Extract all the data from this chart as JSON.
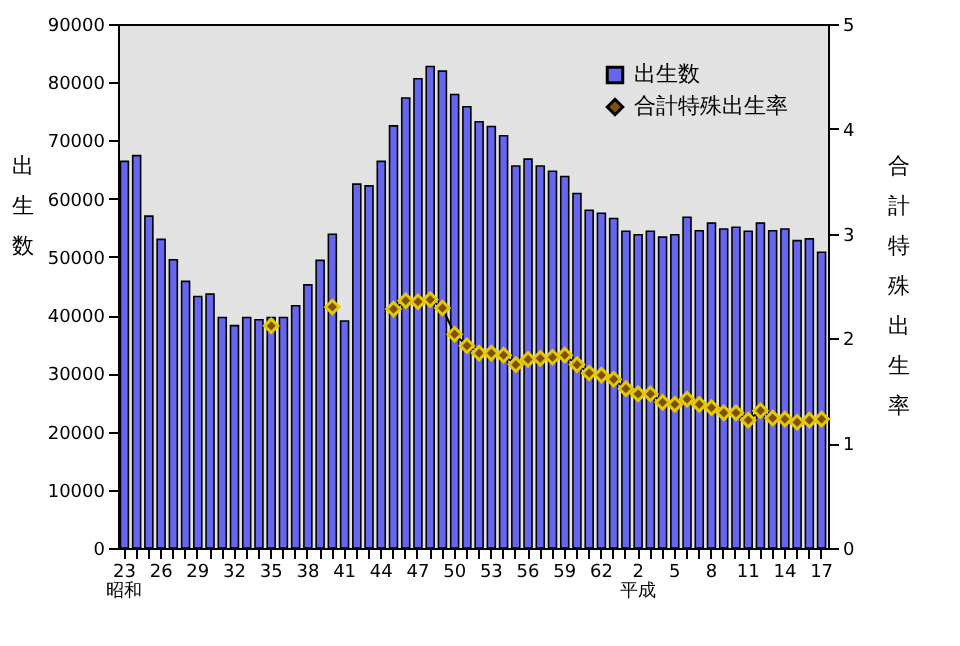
{
  "chart_data": {
    "type": "bar",
    "ylabel": "出生数",
    "y2label": "合計特殊出生率",
    "categories": [
      "23",
      null,
      null,
      "26",
      null,
      null,
      "29",
      null,
      null,
      "32",
      null,
      null,
      "35",
      null,
      null,
      "38",
      null,
      null,
      "41",
      null,
      null,
      "44",
      null,
      null,
      "47",
      null,
      null,
      "50",
      null,
      null,
      "53",
      null,
      null,
      "56",
      null,
      null,
      "59",
      null,
      null,
      "62",
      null,
      null,
      "2",
      null,
      null,
      "5",
      null,
      null,
      "8",
      null,
      null,
      "11",
      null,
      null,
      "14",
      null,
      null,
      "17"
    ],
    "series": [
      {
        "name": "出生数",
        "color": "#6666ee",
        "values": [
          66400,
          67400,
          57000,
          53000,
          49500,
          45800,
          43200,
          43600,
          39600,
          38200,
          39600,
          39200,
          39600,
          39600,
          41600,
          45200,
          49400,
          53900,
          39000,
          62500,
          62200,
          66400,
          72500,
          77300,
          80600,
          82700,
          81900,
          77900,
          75800,
          73200,
          72400,
          70800,
          65600,
          66800,
          65600,
          64700,
          63800,
          60900,
          58000,
          57500,
          56600,
          54400,
          53800,
          54400,
          53400,
          53800,
          56800,
          54500,
          55800,
          54800,
          55100,
          54400,
          55800,
          54500,
          54800,
          52800,
          53100,
          50800
        ]
      },
      {
        "name": "合計特殊出生率",
        "type": "line",
        "axis": "y2",
        "color": "#7a5200",
        "values": [
          null,
          null,
          null,
          null,
          null,
          null,
          null,
          null,
          null,
          null,
          null,
          null,
          2.12,
          null,
          null,
          null,
          null,
          2.3,
          null,
          null,
          null,
          null,
          2.28,
          2.36,
          2.35,
          2.37,
          2.29,
          2.04,
          1.93,
          1.86,
          1.86,
          1.84,
          1.75,
          1.8,
          1.81,
          1.82,
          1.84,
          1.75,
          1.67,
          1.65,
          1.61,
          1.52,
          1.47,
          1.47,
          1.39,
          1.37,
          1.42,
          1.37,
          1.34,
          1.29,
          1.29,
          1.22,
          1.31,
          1.24,
          1.23,
          1.2,
          1.22,
          1.23
        ]
      }
    ],
    "ylim": [
      0,
      90000
    ],
    "yticks": [
      0,
      10000,
      20000,
      30000,
      40000,
      50000,
      60000,
      70000,
      80000,
      90000
    ],
    "y2lim": [
      0,
      5
    ],
    "y2ticks": [
      0,
      1,
      2,
      3,
      4,
      5
    ],
    "annotations": [
      "昭和",
      "平成"
    ],
    "marker": "diamond",
    "line_style": "solid",
    "grid": false,
    "legend": "top right"
  }
}
